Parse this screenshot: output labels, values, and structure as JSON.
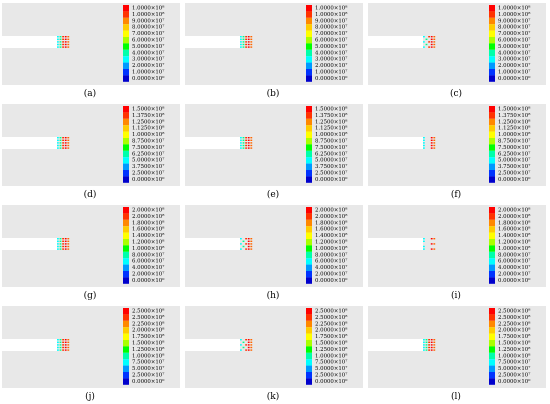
{
  "figure": {
    "panels": [
      {
        "label": "(a)",
        "scale": [
          "1.0000×10⁸",
          "1.0000×10⁸",
          "9.0000×10⁷",
          "8.0000×10⁷",
          "7.0000×10⁷",
          "6.0000×10⁷",
          "5.0000×10⁷",
          "4.0000×10⁷",
          "3.0000×10⁷",
          "2.0000×10⁷",
          "1.0000×10⁷",
          "0.0000×10⁰"
        ],
        "pattern": "solid"
      },
      {
        "label": "(b)",
        "scale": [
          "1.0000×10⁸",
          "1.0000×10⁸",
          "9.0000×10⁷",
          "8.0000×10⁷",
          "7.0000×10⁷",
          "6.0000×10⁷",
          "5.0000×10⁷",
          "4.0000×10⁷",
          "3.0000×10⁷",
          "2.0000×10⁷",
          "1.0000×10⁷",
          "0.0000×10⁰"
        ],
        "pattern": "solid"
      },
      {
        "label": "(c)",
        "scale": [
          "1.0000×10⁸",
          "1.0000×10⁸",
          "9.0000×10⁷",
          "8.0000×10⁷",
          "7.0000×10⁷",
          "6.0000×10⁷",
          "5.0000×10⁷",
          "4.0000×10⁷",
          "3.0000×10⁷",
          "2.0000×10⁷",
          "1.0000×10⁷",
          "0.0000×10⁰"
        ],
        "pattern": "scatter"
      },
      {
        "label": "(d)",
        "scale": [
          "1.5000×10⁸",
          "1.3750×10⁸",
          "1.2500×10⁸",
          "1.1250×10⁸",
          "1.0000×10⁸",
          "8.7500×10⁷",
          "7.5000×10⁷",
          "6.2500×10⁷",
          "5.0000×10⁷",
          "3.7500×10⁷",
          "2.5000×10⁷",
          "0.0000×10⁰"
        ],
        "pattern": "solid"
      },
      {
        "label": "(e)",
        "scale": [
          "1.5000×10⁸",
          "1.3750×10⁸",
          "1.2500×10⁸",
          "1.1250×10⁸",
          "1.0000×10⁸",
          "8.7500×10⁷",
          "7.5000×10⁷",
          "6.2500×10⁷",
          "5.0000×10⁷",
          "3.7500×10⁷",
          "2.5000×10⁷",
          "0.0000×10⁰"
        ],
        "pattern": "solid"
      },
      {
        "label": "(f)",
        "scale": [
          "1.5000×10⁸",
          "1.3750×10⁸",
          "1.2500×10⁸",
          "1.1250×10⁸",
          "1.0000×10⁸",
          "8.7500×10⁷",
          "7.5000×10⁷",
          "6.2500×10⁷",
          "5.0000×10⁷",
          "3.7500×10⁷",
          "2.5000×10⁷",
          "0.0000×10⁰"
        ],
        "pattern": "cracked"
      },
      {
        "label": "(g)",
        "scale": [
          "2.0000×10⁸",
          "2.0000×10⁸",
          "1.8000×10⁸",
          "1.6000×10⁸",
          "1.4000×10⁸",
          "1.2000×10⁸",
          "1.0000×10⁸",
          "8.0000×10⁷",
          "6.0000×10⁷",
          "4.0000×10⁷",
          "2.0000×10⁷",
          "0.0000×10⁰"
        ],
        "pattern": "solid"
      },
      {
        "label": "(h)",
        "scale": [
          "2.0000×10⁸",
          "2.0000×10⁸",
          "1.8000×10⁸",
          "1.6000×10⁸",
          "1.4000×10⁸",
          "1.2000×10⁸",
          "1.0000×10⁸",
          "8.0000×10⁷",
          "6.0000×10⁷",
          "4.0000×10⁷",
          "2.0000×10⁷",
          "0.0000×10⁰"
        ],
        "pattern": "scatter"
      },
      {
        "label": "(i)",
        "scale": [
          "2.0000×10⁸",
          "2.0000×10⁸",
          "1.8000×10⁸",
          "1.6000×10⁸",
          "1.4000×10⁸",
          "1.2000×10⁸",
          "1.0000×10⁸",
          "8.0000×10⁷",
          "6.0000×10⁷",
          "4.0000×10⁷",
          "2.0000×10⁷",
          "0.0000×10⁰"
        ],
        "pattern": "bracket"
      },
      {
        "label": "(j)",
        "scale": [
          "2.5000×10⁸",
          "2.5000×10⁸",
          "2.2500×10⁸",
          "2.0000×10⁸",
          "1.7500×10⁸",
          "1.5000×10⁸",
          "1.2500×10⁸",
          "1.0000×10⁸",
          "7.5000×10⁷",
          "5.0000×10⁷",
          "2.5000×10⁷",
          "0.0000×10⁰"
        ],
        "pattern": "solid"
      },
      {
        "label": "(k)",
        "scale": [
          "2.5000×10⁸",
          "2.5000×10⁸",
          "2.2500×10⁸",
          "2.0000×10⁸",
          "1.7500×10⁸",
          "1.5000×10⁸",
          "1.2500×10⁸",
          "1.0000×10⁸",
          "7.5000×10⁷",
          "5.0000×10⁷",
          "2.5000×10⁷",
          "0.0000×10⁰"
        ],
        "pattern": "scatter"
      },
      {
        "label": "(l)",
        "scale": [
          "2.5000×10⁸",
          "2.5000×10⁸",
          "2.2500×10⁸",
          "2.0000×10⁸",
          "1.7500×10⁸",
          "1.5000×10⁸",
          "1.2500×10⁸",
          "1.0000×10⁸",
          "7.5000×10⁷",
          "5.0000×10⁷",
          "2.5000×10⁷",
          "0.0000×10⁰"
        ],
        "pattern": "dense"
      }
    ],
    "colormap": [
      "#ff0000",
      "#ff3300",
      "#ff8800",
      "#ffcc00",
      "#ffff00",
      "#aaff00",
      "#00ff00",
      "#00ffaa",
      "#00ffff",
      "#0099ff",
      "#0033ff",
      "#0000cc"
    ],
    "specimen_color": "#e8e8e8",
    "slot_color": "#ffffff"
  }
}
